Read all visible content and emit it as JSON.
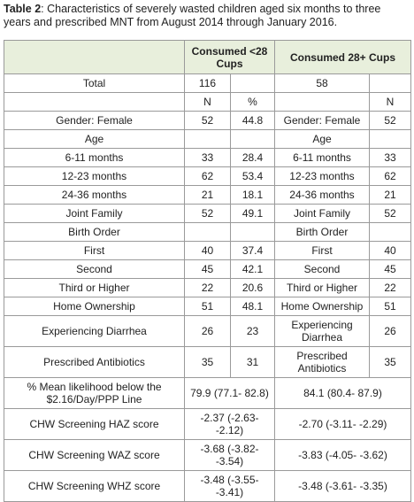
{
  "caption": {
    "label": "Table 2",
    "text": ": Characteristics of severely wasted children aged six months to three years and prescribed MNT from August 2014 through January 2016."
  },
  "table": {
    "header": {
      "group1": "Consumed <28 Cups",
      "group2": "Consumed 28+ Cups"
    },
    "rows": [
      {
        "a": "Total",
        "b": 116,
        "d": 58
      },
      {
        "b": "N",
        "c": "%",
        "e": "N"
      },
      {
        "a": "Gender: Female",
        "b": 52,
        "c": 44.8,
        "d": "Gender: Female",
        "e": 52
      },
      {
        "a": "Age",
        "d": "Age"
      },
      {
        "a": "6-11 months",
        "b": 33,
        "c": 28.4,
        "d": "6-11 months",
        "e": 33
      },
      {
        "a": "12-23 months",
        "b": 62,
        "c": 53.4,
        "d": "12-23 months",
        "e": 62
      },
      {
        "a": "24-36 months",
        "b": 21,
        "c": 18.1,
        "d": "24-36 months",
        "e": 21
      },
      {
        "a": "Joint Family",
        "b": 52,
        "c": 49.1,
        "d": "Joint Family",
        "e": 52
      },
      {
        "a": "Birth Order",
        "d": "Birth Order"
      },
      {
        "a": "First",
        "b": 40,
        "c": 37.4,
        "d": "First",
        "e": 40
      },
      {
        "a": "Second",
        "b": 45,
        "c": 42.1,
        "d": "Second",
        "e": 45
      },
      {
        "a": "Third or Higher",
        "b": 22,
        "c": 20.6,
        "d": "Third or Higher",
        "e": 22
      },
      {
        "a": "Home Ownership",
        "b": 51,
        "c": 48.1,
        "d": "Home Ownership",
        "e": 51
      },
      {
        "a": "Experiencing Diarrhea",
        "b": 26,
        "c": 23,
        "d": "Experiencing Diarrhea",
        "e": 26
      },
      {
        "a": "Prescribed Antibiotics",
        "b": 35,
        "c": 31,
        "d": "Prescribed Antibiotics",
        "e": 35
      },
      {
        "a": "% Mean likelihood below the $2.16/Day/PPP Line",
        "bc": "79.9 (77.1- 82.8)",
        "de": "84.1 (80.4- 87.9)"
      },
      {
        "a": "CHW Screening HAZ score",
        "bc": "-2.37 (-2.63- -2.12)",
        "de": "-2.70 (-3.11- -2.29)"
      },
      {
        "a": "CHW Screening WAZ score",
        "bc": "-3.68 (-3.82- -3.54)",
        "de": "-3.83 (-4.05- -3.62)"
      },
      {
        "a": "CHW Screening WHZ score",
        "bc": "-3.48 (-3.55- -3.41)",
        "de": "-3.48 (-3.61- -3.35)"
      }
    ]
  }
}
